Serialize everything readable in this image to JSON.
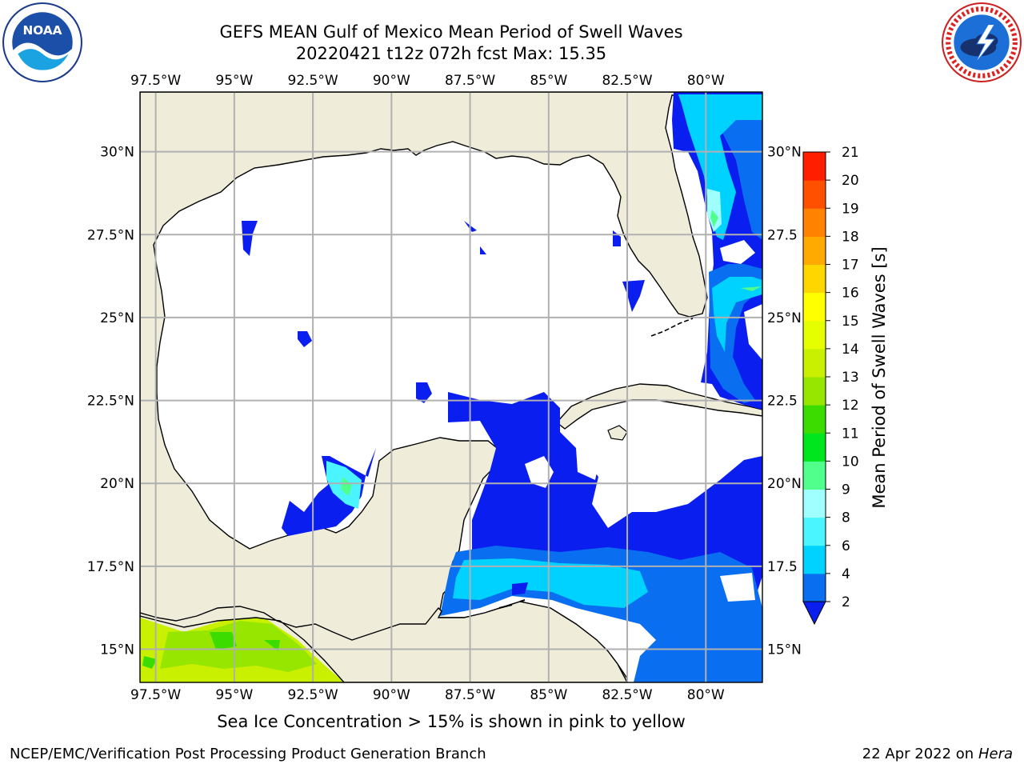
{
  "header": {
    "title_line1": "GEFS MEAN Gulf of Mexico Mean Period of Swell Waves",
    "title_line2": "20220421 t12z 072h fcst   Max: 15.35"
  },
  "logos": {
    "noaa": {
      "name": "noaa-logo",
      "text": "NOAA",
      "ring_text": "NATIONAL OCEANIC AND ATMOSPHERIC ADMINISTRATION · U.S. DEPARTMENT OF COMMERCE"
    },
    "nws": {
      "name": "nws-logo",
      "ring_text": "NATIONAL WEATHER SERVICE"
    }
  },
  "map": {
    "region": "Gulf of Mexico",
    "lon_labels": [
      "97.5°W",
      "95°W",
      "92.5°W",
      "90°W",
      "87.5°W",
      "85°W",
      "82.5°W",
      "80°W"
    ],
    "lon_values": [
      -97.5,
      -95,
      -92.5,
      -90,
      -87.5,
      -85,
      -82.5,
      -80
    ],
    "lat_labels_left": [
      "30°N",
      "27.5°N",
      "25°N",
      "22.5°N",
      "20°N",
      "17.5°N",
      "15°N"
    ],
    "lat_labels_right": [
      "30°N",
      "27.5",
      "25°N",
      "22.5",
      "20°N",
      "17.5",
      "15°N"
    ],
    "lat_values": [
      30,
      27.5,
      25,
      22.5,
      20,
      17.5,
      15
    ],
    "extent": {
      "lon_min": -98,
      "lon_max": -78.2,
      "lat_min": 14,
      "lat_max": 31.8
    },
    "colors": {
      "land": "#efedda",
      "ocean_no_data": "#ffffff",
      "grid": "#b0b0b0",
      "coast": "#000000"
    }
  },
  "colorbar": {
    "label": "Mean Period of Swell Waves [s]",
    "ticks": [
      "2",
      "4",
      "6",
      "8",
      "9",
      "10",
      "11",
      "12",
      "13",
      "14",
      "15",
      "16",
      "17",
      "18",
      "19",
      "20",
      "21"
    ],
    "colors": [
      "#0a6ef0",
      "#00d2ff",
      "#4bf5ff",
      "#a0ffff",
      "#50ff8c",
      "#00e61e",
      "#3cdc00",
      "#96e600",
      "#c8f000",
      "#e6ff00",
      "#ffff00",
      "#ffd700",
      "#ffaa00",
      "#ff8200",
      "#ff5000",
      "#ff1e00"
    ],
    "under_color": "#0a1ef0"
  },
  "notes": {
    "ice": "Sea Ice Concentration > 15% is shown in pink to yellow"
  },
  "footer": {
    "left": "NCEP/EMC/Verification Post Processing Product Generation Branch",
    "right_date": "22 Apr 2022 on",
    "right_host": "Hera"
  }
}
